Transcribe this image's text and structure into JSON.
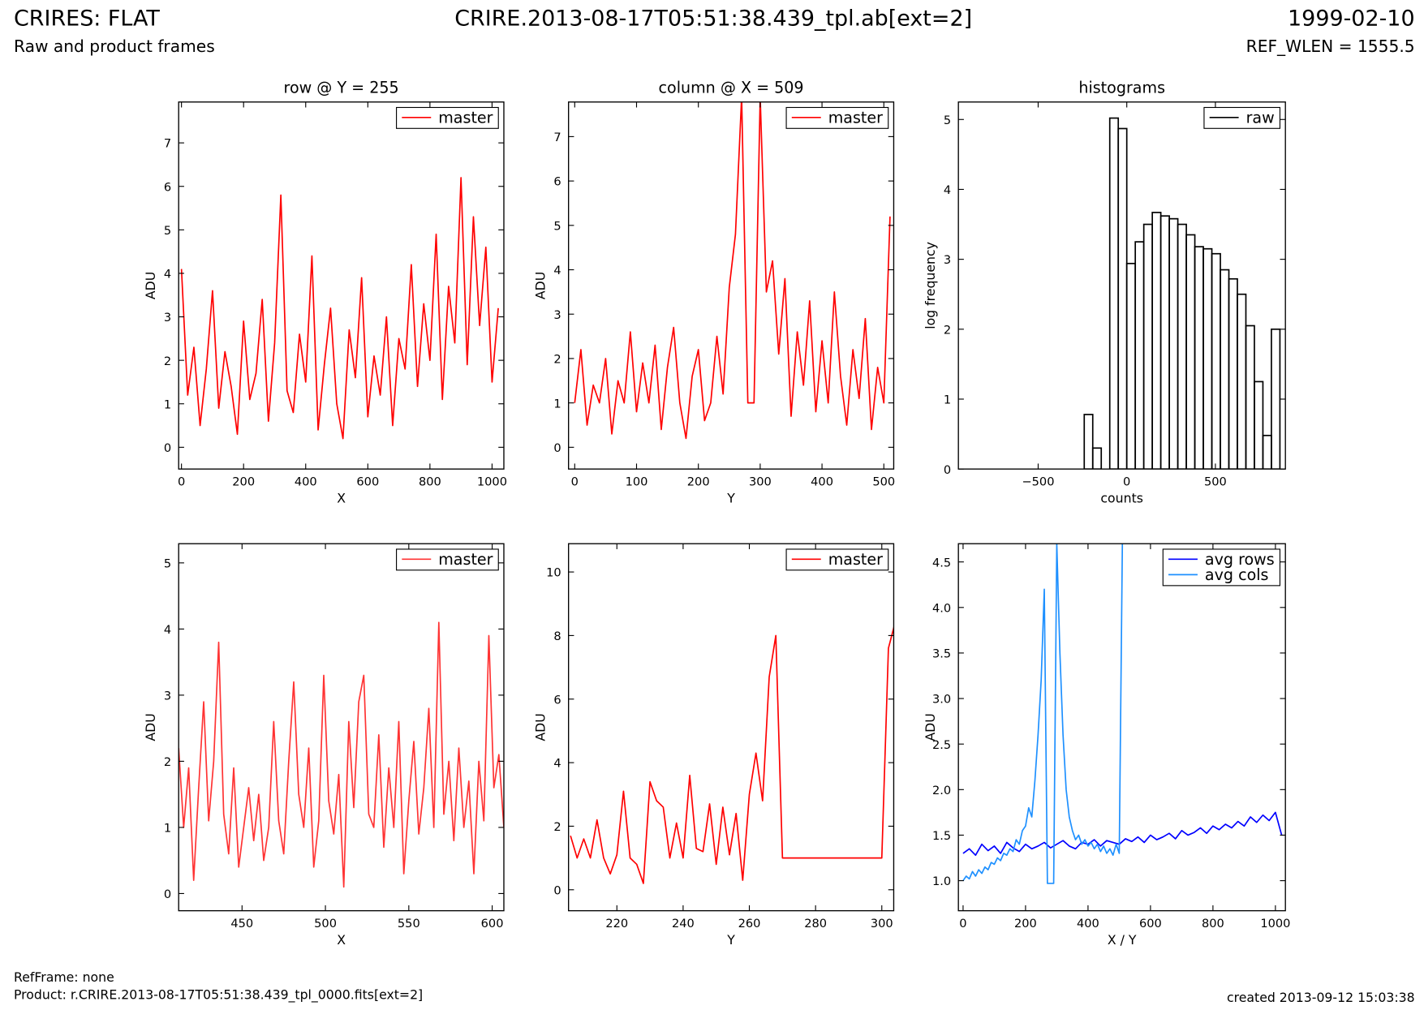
{
  "header": {
    "title": "CRIRES: FLAT",
    "subtitle": "Raw and product frames",
    "filename": "CRIRE.2013-08-17T05:51:38.439_tpl.ab[ext=2]",
    "date": "1999-02-10",
    "ref_wlen": "REF_WLEN = 1555.5"
  },
  "footer": {
    "ref_frame": "RefFrame: none",
    "product": "Product: r.CRIRE.2013-08-17T05:51:38.439_tpl_0000.fits[ext=2]",
    "created": "created 2013-09-12 15:03:38"
  },
  "chart_data": [
    {
      "type": "line",
      "title": "row @ Y = 255",
      "xlabel": "X",
      "ylabel": "ADU",
      "xlim": [
        -9,
        1038
      ],
      "ylim": [
        -0.5,
        7.94
      ],
      "xticks": [
        0,
        200,
        400,
        600,
        800,
        1000
      ],
      "yticks": [
        0,
        1,
        2,
        3,
        4,
        5,
        6,
        7
      ],
      "legend": "upper right",
      "x": [
        0,
        20,
        40,
        60,
        80,
        100,
        120,
        140,
        160,
        180,
        200,
        220,
        240,
        260,
        280,
        300,
        320,
        340,
        360,
        380,
        400,
        420,
        440,
        460,
        480,
        500,
        520,
        540,
        560,
        580,
        600,
        620,
        640,
        660,
        680,
        700,
        720,
        740,
        760,
        780,
        800,
        820,
        840,
        860,
        880,
        900,
        920,
        940,
        960,
        980,
        1000,
        1020
      ],
      "series": [
        {
          "name": "master",
          "color": "#ff0000",
          "values": [
            4.1,
            1.2,
            2.3,
            0.5,
            1.8,
            3.6,
            0.9,
            2.2,
            1.4,
            0.3,
            2.9,
            1.1,
            1.7,
            3.4,
            0.6,
            2.4,
            5.8,
            1.3,
            0.8,
            2.6,
            1.5,
            4.4,
            0.4,
            1.9,
            3.2,
            1.0,
            0.2,
            2.7,
            1.6,
            3.9,
            0.7,
            2.1,
            1.2,
            3.0,
            0.5,
            2.5,
            1.8,
            4.2,
            1.4,
            3.3,
            2.0,
            4.9,
            1.1,
            3.7,
            2.4,
            6.2,
            1.9,
            5.3,
            2.8,
            4.6,
            1.5,
            3.2
          ]
        }
      ]
    },
    {
      "type": "line",
      "title": "column @ X = 509",
      "xlabel": "Y",
      "ylabel": "ADU",
      "xlim": [
        -10,
        516
      ],
      "ylim": [
        -0.49,
        7.78
      ],
      "xticks": [
        0,
        100,
        200,
        300,
        400,
        500
      ],
      "yticks": [
        0,
        1,
        2,
        3,
        4,
        5,
        6,
        7
      ],
      "legend": "upper right",
      "x": [
        0,
        10,
        20,
        30,
        40,
        50,
        60,
        70,
        80,
        90,
        100,
        110,
        120,
        130,
        140,
        150,
        160,
        170,
        180,
        190,
        200,
        210,
        220,
        230,
        240,
        250,
        260,
        270,
        280,
        290,
        300,
        310,
        320,
        330,
        340,
        350,
        360,
        370,
        380,
        390,
        400,
        410,
        420,
        430,
        440,
        450,
        460,
        470,
        480,
        490,
        500,
        510
      ],
      "series": [
        {
          "name": "master",
          "color": "#ff0000",
          "values": [
            1.0,
            2.2,
            0.5,
            1.4,
            1.0,
            2.0,
            0.3,
            1.5,
            1.0,
            2.6,
            0.8,
            1.9,
            1.0,
            2.3,
            0.4,
            1.8,
            2.7,
            1.0,
            0.2,
            1.6,
            2.2,
            0.6,
            1.0,
            2.5,
            1.2,
            3.6,
            4.8,
            7.9,
            1.0,
            1.0,
            7.9,
            3.5,
            4.2,
            2.1,
            3.8,
            0.7,
            2.6,
            1.4,
            3.3,
            0.8,
            2.4,
            1.0,
            3.5,
            1.6,
            0.5,
            2.2,
            1.1,
            2.9,
            0.4,
            1.8,
            1.0,
            5.2
          ]
        }
      ]
    },
    {
      "type": "histogram",
      "title": "histograms",
      "xlabel": "counts",
      "ylabel": "log frequency",
      "xlim": [
        -950,
        895
      ],
      "ylim": [
        0,
        5.25
      ],
      "xticks": [
        {
          "value": -500,
          "label": "−500"
        },
        0,
        500
      ],
      "yticks": [
        0,
        1,
        2,
        3,
        4,
        5
      ],
      "legend": "upper right",
      "series": [
        {
          "name": "raw",
          "color": "#000000",
          "bins": [
            -240,
            -192,
            -144,
            -96,
            -48,
            0,
            48,
            96,
            144,
            192,
            240,
            288,
            336,
            384,
            432,
            480,
            528,
            576,
            624,
            672,
            720,
            768,
            816,
            864
          ],
          "values": [
            0.78,
            0.3,
            0,
            5.02,
            4.87,
            2.94,
            3.25,
            3.5,
            3.67,
            3.62,
            3.58,
            3.5,
            3.35,
            3.18,
            3.15,
            3.08,
            2.85,
            2.72,
            2.5,
            2.05,
            1.25,
            0.48,
            2.0
          ]
        }
      ]
    },
    {
      "type": "line",
      "xlabel": "X",
      "ylabel": "ADU",
      "xlim": [
        412,
        607
      ],
      "ylim": [
        -0.26,
        5.29
      ],
      "xticks": [
        450,
        500,
        550,
        600
      ],
      "yticks": [
        0,
        1,
        2,
        3,
        4,
        5
      ],
      "legend": "upper right",
      "x": [
        412,
        415,
        418,
        421,
        424,
        427,
        430,
        433,
        436,
        439,
        442,
        445,
        448,
        451,
        454,
        457,
        460,
        463,
        466,
        469,
        472,
        475,
        478,
        481,
        484,
        487,
        490,
        493,
        496,
        499,
        502,
        505,
        508,
        511,
        514,
        517,
        520,
        523,
        526,
        529,
        532,
        535,
        538,
        541,
        544,
        547,
        550,
        553,
        556,
        559,
        562,
        565,
        568,
        571,
        574,
        577,
        580,
        583,
        586,
        589,
        592,
        595,
        598,
        601,
        604,
        607
      ],
      "series": [
        {
          "name": "master",
          "color": "#ff3333",
          "values": [
            2.2,
            1.0,
            1.9,
            0.2,
            1.6,
            2.9,
            1.1,
            2.0,
            3.8,
            1.2,
            0.6,
            1.9,
            0.4,
            1.0,
            1.6,
            0.8,
            1.5,
            0.5,
            1.0,
            2.6,
            1.1,
            0.6,
            2.0,
            3.2,
            1.5,
            1.0,
            2.2,
            0.4,
            1.1,
            3.3,
            1.4,
            0.9,
            1.8,
            0.1,
            2.6,
            1.3,
            2.9,
            3.3,
            1.2,
            1.0,
            2.4,
            0.7,
            1.9,
            1.0,
            2.6,
            0.3,
            1.4,
            2.3,
            0.9,
            1.6,
            2.8,
            1.0,
            4.1,
            1.2,
            2.0,
            0.8,
            2.2,
            1.0,
            1.7,
            0.3,
            2.0,
            1.1,
            3.9,
            1.6,
            2.1,
            1.0
          ]
        }
      ]
    },
    {
      "type": "line",
      "xlabel": "Y",
      "ylabel": "ADU",
      "xlim": [
        205.4,
        303.6
      ],
      "ylim": [
        -0.66,
        10.89
      ],
      "xticks": [
        220,
        240,
        260,
        280,
        300
      ],
      "yticks": [
        0,
        2,
        4,
        6,
        8,
        10
      ],
      "legend": "upper right",
      "x": [
        206,
        208,
        210,
        212,
        214,
        216,
        218,
        220,
        222,
        224,
        226,
        228,
        230,
        232,
        234,
        236,
        238,
        240,
        242,
        244,
        246,
        248,
        250,
        252,
        254,
        256,
        258,
        260,
        262,
        264,
        266,
        268,
        270,
        272,
        274,
        276,
        278,
        280,
        282,
        284,
        286,
        288,
        290,
        292,
        294,
        296,
        298,
        300,
        302,
        304
      ],
      "series": [
        {
          "name": "master",
          "color": "#ff0000",
          "values": [
            1.7,
            1.0,
            1.6,
            1.0,
            2.2,
            1.0,
            0.5,
            1.1,
            3.1,
            1.0,
            0.8,
            0.2,
            3.4,
            2.8,
            2.6,
            1.0,
            2.1,
            1.0,
            3.6,
            1.3,
            1.2,
            2.7,
            0.8,
            2.6,
            1.1,
            2.4,
            0.3,
            3.0,
            4.3,
            2.8,
            6.7,
            8.0,
            1.0,
            1.0,
            1.0,
            1.0,
            1.0,
            1.0,
            1.0,
            1.0,
            1.0,
            1.0,
            1.0,
            1.0,
            1.0,
            1.0,
            1.0,
            1.0,
            7.6,
            8.4
          ]
        }
      ]
    },
    {
      "type": "line",
      "xlabel": "X / Y",
      "ylabel": "ADU",
      "xlim": [
        -15,
        1032
      ],
      "ylim": [
        0.67,
        4.7
      ],
      "xticks": [
        0,
        200,
        400,
        600,
        800,
        1000
      ],
      "yticks": [
        {
          "value": 1,
          "label": "1.0"
        },
        1.5,
        {
          "value": 2,
          "label": "2.0"
        },
        2.5,
        {
          "value": 3,
          "label": "3.0"
        },
        3.5,
        {
          "value": 4,
          "label": "4.0"
        },
        4.5
      ],
      "legend": "upper right",
      "series": [
        {
          "name": "avg rows",
          "color": "#0000ff",
          "x": [
            0,
            20,
            40,
            60,
            80,
            100,
            120,
            140,
            160,
            180,
            200,
            220,
            240,
            260,
            280,
            300,
            320,
            340,
            360,
            380,
            400,
            420,
            440,
            460,
            480,
            500,
            520,
            540,
            560,
            580,
            600,
            620,
            640,
            660,
            680,
            700,
            720,
            740,
            760,
            780,
            800,
            820,
            840,
            860,
            880,
            900,
            920,
            940,
            960,
            980,
            1000,
            1020
          ],
          "values": [
            1.3,
            1.35,
            1.28,
            1.4,
            1.33,
            1.38,
            1.3,
            1.42,
            1.36,
            1.32,
            1.4,
            1.35,
            1.38,
            1.42,
            1.36,
            1.4,
            1.44,
            1.38,
            1.35,
            1.42,
            1.4,
            1.45,
            1.38,
            1.44,
            1.42,
            1.4,
            1.46,
            1.43,
            1.48,
            1.42,
            1.5,
            1.45,
            1.48,
            1.52,
            1.46,
            1.55,
            1.5,
            1.53,
            1.58,
            1.52,
            1.6,
            1.56,
            1.62,
            1.58,
            1.65,
            1.6,
            1.7,
            1.64,
            1.72,
            1.66,
            1.75,
            1.5
          ]
        },
        {
          "name": "avg cols",
          "color": "#1e90ff",
          "x": [
            0,
            10,
            20,
            30,
            40,
            50,
            60,
            70,
            80,
            90,
            100,
            110,
            120,
            130,
            140,
            150,
            160,
            170,
            180,
            190,
            200,
            210,
            220,
            230,
            240,
            250,
            260,
            270,
            280,
            290,
            300,
            310,
            320,
            330,
            340,
            350,
            360,
            370,
            380,
            390,
            400,
            410,
            420,
            430,
            440,
            450,
            460,
            470,
            480,
            490,
            500,
            510
          ],
          "values": [
            1.0,
            1.05,
            1.02,
            1.1,
            1.05,
            1.12,
            1.08,
            1.15,
            1.12,
            1.2,
            1.18,
            1.25,
            1.22,
            1.3,
            1.28,
            1.35,
            1.32,
            1.45,
            1.4,
            1.55,
            1.6,
            1.8,
            1.7,
            2.1,
            2.6,
            3.2,
            4.2,
            0.97,
            0.97,
            0.97,
            4.7,
            3.5,
            2.6,
            2.0,
            1.7,
            1.55,
            1.45,
            1.5,
            1.4,
            1.45,
            1.38,
            1.42,
            1.35,
            1.4,
            1.32,
            1.38,
            1.3,
            1.35,
            1.28,
            1.4,
            1.3,
            4.7
          ]
        }
      ]
    }
  ]
}
